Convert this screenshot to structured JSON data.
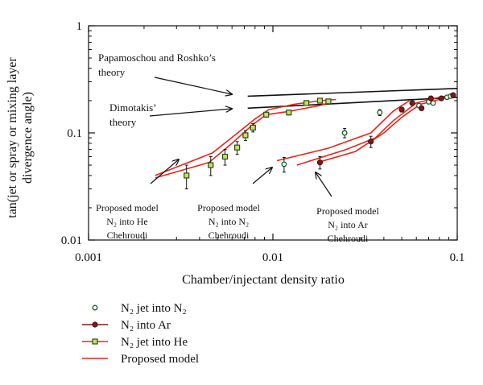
{
  "chart_data": {
    "type": "scatter",
    "xscale": "log",
    "yscale": "log",
    "xlim": [
      0.001,
      0.1
    ],
    "ylim": [
      0.01,
      1
    ],
    "grid": false,
    "legend_position": "bottom-left",
    "xlabel": "Chamber/injectant density ratio",
    "ylabel_lines": [
      "tan(jet or spray or mixing layer",
      "divergence angle)"
    ],
    "x_ticks": [
      {
        "value": 0.001,
        "label": "0.001"
      },
      {
        "value": 0.01,
        "label": "0.01"
      },
      {
        "value": 0.1,
        "label": "0.1"
      }
    ],
    "y_ticks": [
      {
        "value": 0.01,
        "label": "0.01"
      },
      {
        "value": 0.1,
        "label": "0.1"
      },
      {
        "value": 1,
        "label": "1"
      }
    ],
    "theory_lines": [
      {
        "name": "Papamoschou and Roshko's theory",
        "x": [
          0.0073,
          0.1
        ],
        "y": [
          0.22,
          0.26
        ]
      },
      {
        "name": "Dimotakis' theory",
        "x": [
          0.0073,
          0.1
        ],
        "y": [
          0.17,
          0.215
        ]
      }
    ],
    "series": [
      {
        "name": "N2 jet into N2",
        "marker": "open-circle",
        "color": "#1a5a2a",
        "points": [
          {
            "x": 0.0115,
            "y": 0.051,
            "err": 0.008
          },
          {
            "x": 0.0245,
            "y": 0.1,
            "err": 0.01
          },
          {
            "x": 0.038,
            "y": 0.155,
            "err": 0.01
          },
          {
            "x": 0.05,
            "y": 0.165,
            "err": 0.008
          },
          {
            "x": 0.062,
            "y": 0.18,
            "err": 0.008
          },
          {
            "x": 0.07,
            "y": 0.195,
            "err": 0.008
          },
          {
            "x": 0.074,
            "y": 0.19,
            "err": 0.008
          },
          {
            "x": 0.088,
            "y": 0.215,
            "err": 0.008
          },
          {
            "x": 0.092,
            "y": 0.22,
            "err": 0.008
          }
        ]
      },
      {
        "name": "N2 into Ar",
        "marker": "filled-circle",
        "color": "#7a1a1a",
        "points": [
          {
            "x": 0.018,
            "y": 0.053,
            "err": 0.007
          },
          {
            "x": 0.034,
            "y": 0.083,
            "err": 0.01
          },
          {
            "x": 0.05,
            "y": 0.165,
            "err": 0.008
          },
          {
            "x": 0.057,
            "y": 0.19,
            "err": 0.008
          },
          {
            "x": 0.064,
            "y": 0.17,
            "err": 0.008
          },
          {
            "x": 0.072,
            "y": 0.21,
            "err": 0.008
          },
          {
            "x": 0.082,
            "y": 0.21,
            "err": 0.008
          },
          {
            "x": 0.095,
            "y": 0.225,
            "err": 0.008
          }
        ]
      },
      {
        "name": "N2 jet into He",
        "marker": "open-square",
        "color": "#3a7a2a",
        "points": [
          {
            "x": 0.0034,
            "y": 0.04,
            "err": 0.01
          },
          {
            "x": 0.0046,
            "y": 0.05,
            "err": 0.01
          },
          {
            "x": 0.0055,
            "y": 0.06,
            "err": 0.01
          },
          {
            "x": 0.0064,
            "y": 0.073,
            "err": 0.01
          },
          {
            "x": 0.0071,
            "y": 0.095,
            "err": 0.01
          },
          {
            "x": 0.0078,
            "y": 0.112,
            "err": 0.01
          },
          {
            "x": 0.0092,
            "y": 0.148,
            "err": 0.008
          },
          {
            "x": 0.0122,
            "y": 0.155,
            "err": 0.008
          },
          {
            "x": 0.0152,
            "y": 0.19,
            "err": 0.008
          },
          {
            "x": 0.018,
            "y": 0.2,
            "err": 0.008
          },
          {
            "x": 0.02,
            "y": 0.197,
            "err": 0.008
          }
        ]
      }
    ],
    "model_curves": [
      {
        "name": "Proposed model",
        "x": [
          0.0023,
          0.0045,
          0.006,
          0.0078,
          0.0092,
          0.012,
          0.018,
          0.02
        ],
        "y": [
          0.038,
          0.053,
          0.08,
          0.12,
          0.148,
          0.158,
          0.18,
          0.19
        ]
      },
      {
        "name": "Proposed model",
        "x": [
          0.0023,
          0.0047,
          0.0062,
          0.008,
          0.0095,
          0.013,
          0.018,
          0.022
        ],
        "y": [
          0.04,
          0.065,
          0.095,
          0.135,
          0.165,
          0.185,
          0.2,
          0.205
        ]
      },
      {
        "name": "Proposed model",
        "x": [
          0.0105,
          0.02,
          0.034,
          0.045,
          0.055
        ],
        "y": [
          0.055,
          0.072,
          0.1,
          0.16,
          0.2
        ]
      },
      {
        "name": "Proposed model",
        "x": [
          0.0135,
          0.025,
          0.036,
          0.045,
          0.06,
          0.075,
          0.098
        ],
        "y": [
          0.05,
          0.07,
          0.09,
          0.13,
          0.19,
          0.21,
          0.23
        ]
      },
      {
        "name": "Proposed model",
        "x": [
          0.0175,
          0.028,
          0.04,
          0.05,
          0.063,
          0.08,
          0.098
        ],
        "y": [
          0.053,
          0.067,
          0.1,
          0.14,
          0.185,
          0.205,
          0.23
        ]
      }
    ],
    "annotations": [
      {
        "id": "papamoschou",
        "lines": [
          "Papamoschou and Roshko’s",
          "theory"
        ]
      },
      {
        "id": "dimotakis",
        "lines": [
          "Dimotakis’",
          "theory"
        ]
      },
      {
        "id": "model_he",
        "lines": [
          "Proposed model",
          "N₂ into He",
          "Chehroudi"
        ]
      },
      {
        "id": "model_n2",
        "lines": [
          "Proposed model",
          "N₂ into N₂",
          "Chehroudi"
        ]
      },
      {
        "id": "model_ar",
        "lines": [
          "Proposed model",
          "N₂ into Ar",
          "Chehroudi"
        ]
      }
    ],
    "legend": [
      {
        "label": "N₂ jet into N₂",
        "marker": "open-circle"
      },
      {
        "label": "N₂ into Ar",
        "marker": "filled-circle"
      },
      {
        "label": "N₂ jet into He",
        "marker": "open-square"
      },
      {
        "label": "Proposed model",
        "marker": "line"
      }
    ],
    "colors": {
      "model": "#e8241a",
      "theory": "#111111",
      "ar_marker": "#7a1a1a",
      "n2_marker": "#1a5a2a",
      "he_marker_fill": "#c8e060"
    }
  }
}
